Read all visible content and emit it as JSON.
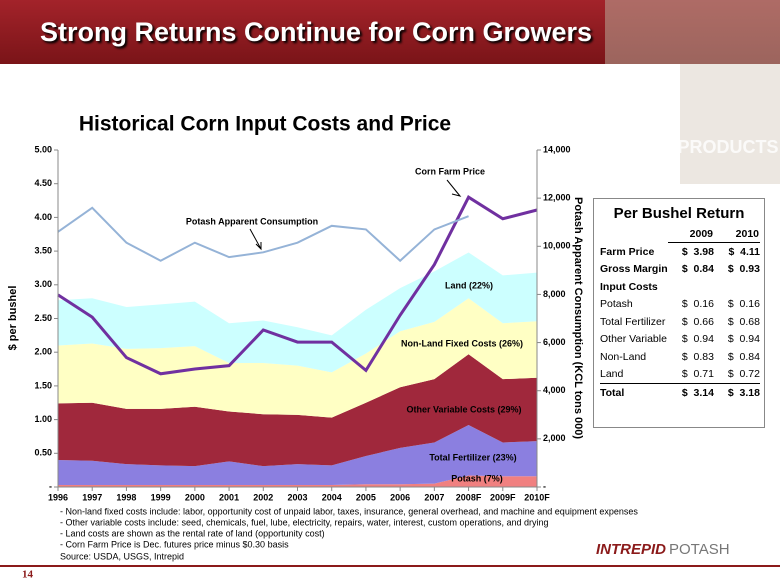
{
  "slide": {
    "title": "Strong Returns Continue for Corn Growers",
    "banner_text": "PRODUCTS",
    "page_number": "14",
    "logo": [
      "INTREPID",
      "POTASH"
    ],
    "notes": [
      "- Non-land fixed costs include: labor, opportunity cost of unpaid labor, taxes, insurance, general overhead, and machine and equipment expenses",
      "- Other variable costs include: seed, chemicals, fuel, lube, electricity, repairs, water, interest, custom operations, and drying",
      "- Land costs are shown as the rental rate of land (opportunity cost)",
      "- Corn Farm Price is Dec. futures price minus $0.30 basis"
    ],
    "source": "Source: USDA, USGS, Intrepid"
  },
  "chart_data": {
    "type": "area",
    "title": "Historical Corn Input Costs and Price",
    "y_label": "$ per bushel",
    "y2_label": "Potash Apparent Consumption (KCL tons 000)",
    "categories": [
      "1996",
      "1997",
      "1998",
      "1999",
      "2000",
      "2001",
      "2002",
      "2003",
      "2004",
      "2005",
      "2006",
      "2007",
      "2008F",
      "2009F",
      "2010F"
    ],
    "ylim": [
      0,
      5
    ],
    "yticks": [
      {
        "value": 0,
        "label": "-"
      },
      {
        "value": 0.5,
        "label": "0.50"
      },
      {
        "value": 1,
        "label": "1.00"
      },
      {
        "value": 1.5,
        "label": "1.50"
      },
      {
        "value": 2,
        "label": "2.00"
      },
      {
        "value": 2.5,
        "label": "2.50"
      },
      {
        "value": 3,
        "label": "3.00"
      },
      {
        "value": 3.5,
        "label": "3.50"
      },
      {
        "value": 4,
        "label": "4.00"
      },
      {
        "value": 4.5,
        "label": "4.50"
      },
      {
        "value": 5,
        "label": "5.00"
      }
    ],
    "y2lim": [
      0,
      14000
    ],
    "y2ticks": [
      {
        "value": 0,
        "label": "-"
      },
      {
        "value": 2000,
        "label": "2,000"
      },
      {
        "value": 4000,
        "label": "4,000"
      },
      {
        "value": 6000,
        "label": "6,000"
      },
      {
        "value": 8000,
        "label": "8,000"
      },
      {
        "value": 10000,
        "label": "10,000"
      },
      {
        "value": 12000,
        "label": "12,000"
      },
      {
        "value": 14000,
        "label": "14,000"
      }
    ],
    "series": [
      {
        "name": "Potash (7%)",
        "type": "area",
        "color": "#f08080",
        "values": [
          0.03,
          0.03,
          0.03,
          0.03,
          0.03,
          0.03,
          0.03,
          0.03,
          0.03,
          0.04,
          0.04,
          0.05,
          0.17,
          0.16,
          0.16
        ]
      },
      {
        "name": "Total Fertilizer (23%)",
        "type": "area",
        "color": "#8b7fe0",
        "values": [
          0.37,
          0.36,
          0.31,
          0.29,
          0.28,
          0.35,
          0.28,
          0.31,
          0.29,
          0.42,
          0.54,
          0.61,
          0.75,
          0.5,
          0.52
        ]
      },
      {
        "name": "Other Variable Costs (29%)",
        "type": "area",
        "color": "#a0283c",
        "values": [
          0.84,
          0.86,
          0.82,
          0.84,
          0.88,
          0.74,
          0.77,
          0.73,
          0.71,
          0.79,
          0.9,
          0.94,
          1.05,
          0.94,
          0.94
        ]
      },
      {
        "name": "Non-Land Fixed Costs (26%)",
        "type": "area",
        "color": "#ffffc4",
        "values": [
          0.86,
          0.88,
          0.89,
          0.9,
          0.9,
          0.72,
          0.76,
          0.73,
          0.67,
          0.73,
          0.83,
          0.85,
          0.83,
          0.83,
          0.84
        ]
      },
      {
        "name": "Land (22%)",
        "type": "area",
        "color": "#ccffff",
        "values": [
          0.67,
          0.67,
          0.62,
          0.65,
          0.66,
          0.59,
          0.63,
          0.57,
          0.55,
          0.65,
          0.64,
          0.75,
          0.68,
          0.71,
          0.72
        ]
      },
      {
        "name": "Corn Farm Price",
        "type": "line",
        "color": "#7030a0",
        "values": [
          2.85,
          2.52,
          1.92,
          1.68,
          1.75,
          1.8,
          2.33,
          2.15,
          2.15,
          1.73,
          2.55,
          3.3,
          4.3,
          3.98,
          4.11
        ]
      },
      {
        "name": "Potash Apparent Consumption",
        "type": "line",
        "axis": "y2",
        "color": "#95b3d7",
        "values": [
          10600,
          11600,
          10150,
          9400,
          10150,
          9550,
          9750,
          10150,
          10850,
          10700,
          9400,
          10700,
          11250,
          null,
          null
        ]
      }
    ]
  },
  "table": {
    "title": "Per Bushel Return",
    "columns": [
      "2009",
      "2010"
    ],
    "rows": [
      [
        "Farm Price",
        "$  3.98",
        "$  4.11"
      ],
      [
        "Gross Margin",
        "$  0.84",
        "$  0.93"
      ],
      [
        "Input Costs"
      ],
      [
        "Potash",
        "$  0.16",
        "$  0.16"
      ],
      [
        "Total Fertilizer",
        "$  0.66",
        "$  0.68"
      ],
      [
        "Other Variable",
        "$  0.94",
        "$  0.94"
      ],
      [
        "Non-Land",
        "$  0.83",
        "$  0.84"
      ],
      [
        "Land",
        "$  0.71",
        "$  0.72"
      ],
      [
        "Total",
        "$  3.14",
        "$  3.18"
      ]
    ]
  }
}
